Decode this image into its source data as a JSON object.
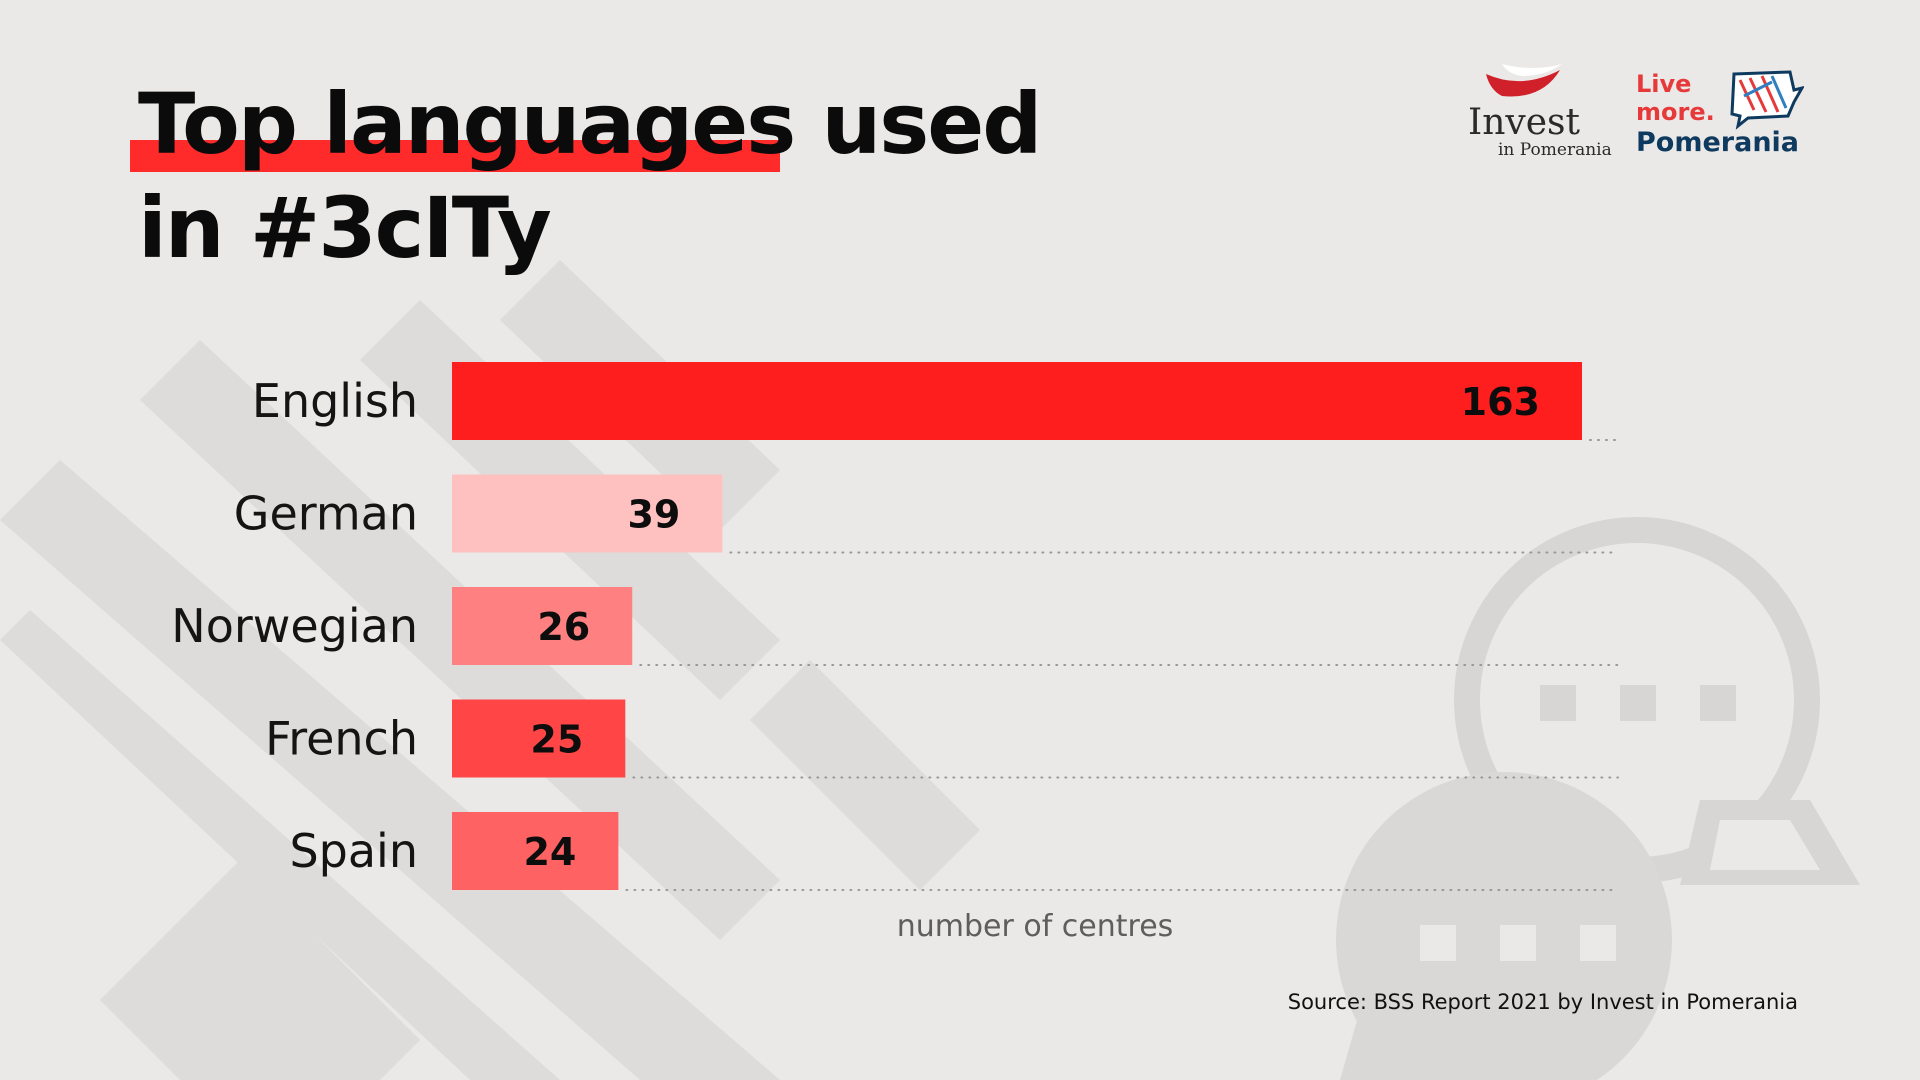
{
  "title": {
    "line1_highlighted": "Top languages",
    "line1_rest": " used",
    "line2": "in #3cITy"
  },
  "logos": {
    "invest_name": "Invest",
    "invest_sub": "in Pomerania",
    "live_line1": "Live",
    "live_line2": "more.",
    "live_line3": "Pomerania"
  },
  "source": "Source: BSS Report 2021 by Invest in Pomerania",
  "colors": {
    "background": "#ebe9e7",
    "accent": "#ff2b2b",
    "bar_english": "#ff1e1e",
    "bar_german": "#ffc0c0",
    "bar_norwegian": "#ff8080",
    "bar_french": "#ff4545",
    "bar_spain": "#ff6262",
    "decor": "#dcdad8"
  },
  "chart_data": {
    "type": "bar",
    "orientation": "horizontal",
    "categories": [
      "English",
      "German",
      "Norwegian",
      "French",
      "Spain"
    ],
    "values": [
      163,
      39,
      26,
      25,
      24
    ],
    "xlabel": "number of centres",
    "xlim": [
      0,
      163
    ],
    "grid": "dotted horizontal lines"
  }
}
